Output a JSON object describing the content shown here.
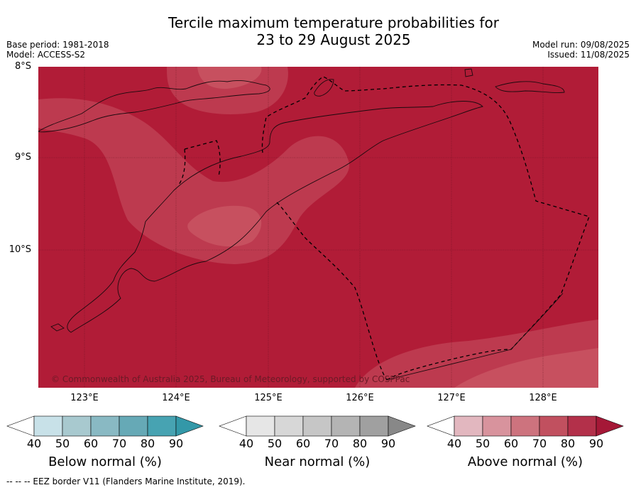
{
  "title": {
    "line1": "Tercile maximum temperature probabilities for",
    "line2": "23 to 29 August 2025"
  },
  "meta_left": {
    "base_period": "Base period: 1981-2018",
    "model": "Model: ACCESS-S2"
  },
  "meta_right": {
    "model_run": "Model run: 09/08/2025",
    "issued": "Issued: 11/08/2025"
  },
  "map": {
    "lat_labels": [
      "8°S",
      "9°S",
      "10°S"
    ],
    "lon_labels": [
      "123°E",
      "124°E",
      "125°E",
      "126°E",
      "127°E",
      "128°E"
    ],
    "copyright": "© Commonwealth of Australia 2025, Bureau of Meteorology, supported by COSPPac",
    "colors": {
      "above_90": "#b11c37",
      "above_80": "#bd3a4f",
      "above_70": "#c7505f",
      "boundary": "#000000"
    }
  },
  "legends": [
    {
      "title": "Below normal (%)",
      "ticks": [
        "40",
        "50",
        "60",
        "70",
        "80",
        "90"
      ],
      "colors": [
        "#ffffff",
        "#c8e1e8",
        "#a8c9cf",
        "#89b9c3",
        "#66a9b6",
        "#47a3b2",
        "#3398a8"
      ]
    },
    {
      "title": "Near normal (%)",
      "ticks": [
        "40",
        "50",
        "60",
        "70",
        "80",
        "90"
      ],
      "colors": [
        "#ffffff",
        "#e6e6e6",
        "#d7d7d7",
        "#c6c6c6",
        "#b4b4b4",
        "#a0a0a0",
        "#888888"
      ]
    },
    {
      "title": "Above normal (%)",
      "ticks": [
        "40",
        "50",
        "60",
        "70",
        "80",
        "90"
      ],
      "colors": [
        "#ffffff",
        "#e2b7bf",
        "#d8939d",
        "#cd737e",
        "#c1505f",
        "#b3304a",
        "#a51837"
      ]
    }
  ],
  "footnote": "--  --  -- EEZ border V11 (Flanders Marine Institute, 2019)."
}
